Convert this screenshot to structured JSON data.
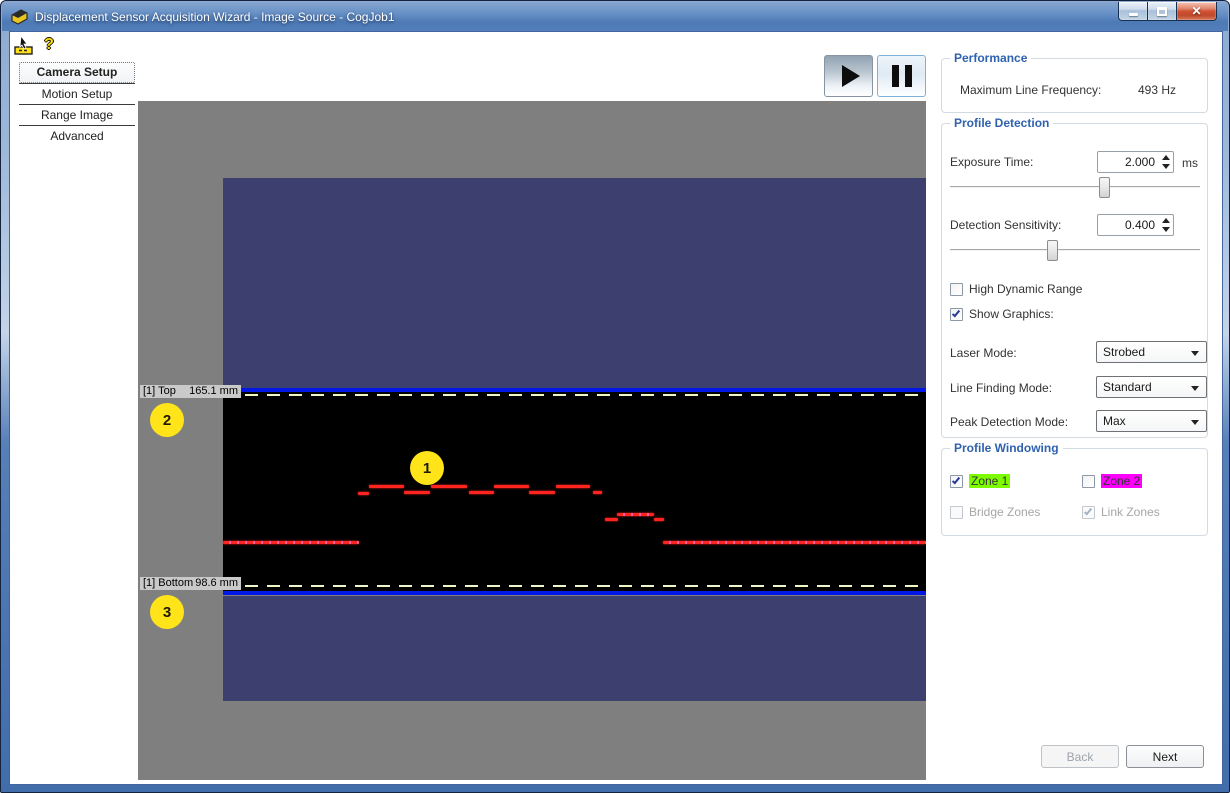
{
  "window": {
    "title": "Displacement Sensor Acquisition Wizard - Image Source - CogJob1"
  },
  "toolbar": {
    "help_glyph": "?"
  },
  "nav": {
    "items": [
      {
        "label": "Camera Setup",
        "selected": true
      },
      {
        "label": "Motion Setup",
        "selected": false
      },
      {
        "label": "Range Image",
        "selected": false
      },
      {
        "label": "Advanced",
        "selected": false
      }
    ]
  },
  "viewer": {
    "top_marker": {
      "name": "[1] Top",
      "value": "165.1 mm"
    },
    "bottom_marker": {
      "name": "[1] Bottom",
      "value": "98.6 mm"
    },
    "callouts": [
      {
        "n": "1"
      },
      {
        "n": "2"
      },
      {
        "n": "3"
      }
    ],
    "laser_segments": [
      [
        85,
        440,
        136,
        1
      ],
      [
        220,
        391,
        11,
        0
      ],
      [
        231,
        384,
        35,
        0
      ],
      [
        266,
        390,
        26,
        0
      ],
      [
        293,
        384,
        36,
        0
      ],
      [
        331,
        390,
        25,
        0
      ],
      [
        356,
        384,
        35,
        0
      ],
      [
        391,
        390,
        26,
        0
      ],
      [
        418,
        384,
        34,
        0
      ],
      [
        455,
        390,
        9,
        0
      ],
      [
        467,
        417,
        13,
        0
      ],
      [
        479,
        412,
        37,
        1
      ],
      [
        516,
        417,
        10,
        0
      ],
      [
        525,
        440,
        263,
        1
      ]
    ]
  },
  "performance": {
    "title": "Performance",
    "max_line_freq_label": "Maximum Line Frequency:",
    "max_line_freq_value": "493 Hz"
  },
  "profile_detection": {
    "title": "Profile Detection",
    "exposure_label": "Exposure Time:",
    "exposure_value": "2.000",
    "exposure_unit": "ms",
    "exposure_slider_pct": 62,
    "sensitivity_label": "Detection Sensitivity:",
    "sensitivity_value": "0.400",
    "sensitivity_slider_pct": 41,
    "hdr_label": "High Dynamic Range",
    "hdr_checked": false,
    "show_graphics_label": "Show Graphics:",
    "show_graphics_checked": true,
    "laser_mode_label": "Laser Mode:",
    "laser_mode_value": "Strobed",
    "line_finding_label": "Line Finding Mode:",
    "line_finding_value": "Standard",
    "peak_label": "Peak Detection Mode:",
    "peak_value": "Max"
  },
  "profile_windowing": {
    "title": "Profile Windowing",
    "zone1_label": "Zone 1",
    "zone1_checked": true,
    "zone2_label": "Zone 2",
    "zone2_checked": false,
    "bridge_label": "Bridge Zones",
    "bridge_checked": false,
    "link_label": "Link Zones",
    "link_checked": true
  },
  "footer": {
    "back_label": "Back",
    "next_label": "Next"
  },
  "colors": {
    "zone1_highlight": "#7dfc00",
    "zone2_highlight": "#ff00ff",
    "laser": "#ff2420",
    "window_line_blue": "#0017e8",
    "dashed_line": "#edf6c4",
    "group_title_blue": "#2f62ae",
    "callout_yellow": "#ffe41a"
  }
}
